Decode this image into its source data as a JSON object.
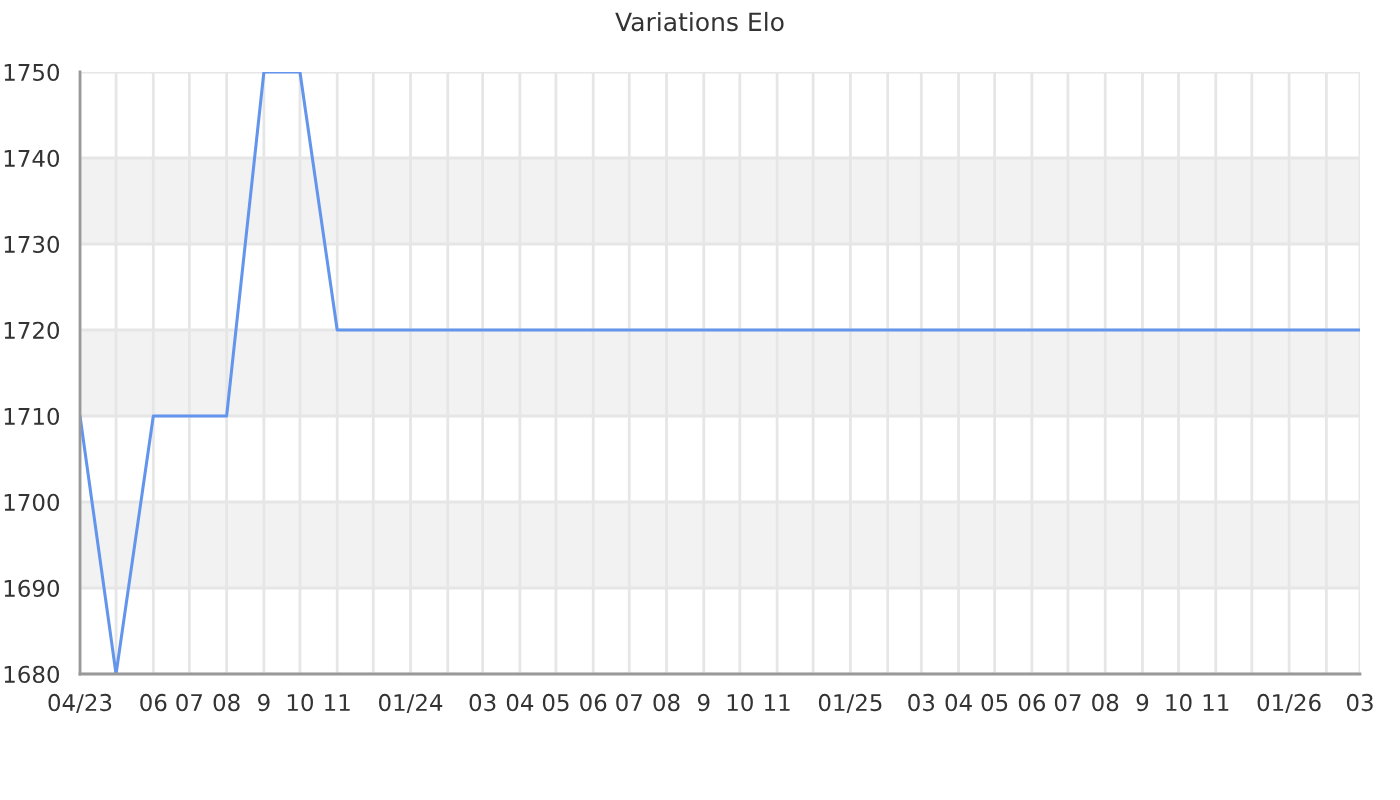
{
  "chart_data": {
    "type": "line",
    "title": "Variations Elo",
    "x": [
      "2023-04",
      "2023-05",
      "2023-06",
      "2023-07",
      "2023-08",
      "2023-09",
      "2023-10",
      "2023-11",
      "2023-12",
      "2024-01",
      "2024-02",
      "2024-03",
      "2024-04",
      "2024-05",
      "2024-06",
      "2024-07",
      "2024-08",
      "2024-09",
      "2024-10",
      "2024-11",
      "2024-12",
      "2025-01",
      "2025-02",
      "2025-03",
      "2025-04",
      "2025-05",
      "2025-06",
      "2025-07",
      "2025-08",
      "2025-09",
      "2025-10",
      "2025-11",
      "2025-12",
      "2026-01",
      "2026-02",
      "2026-03"
    ],
    "series": [
      {
        "color": "#6495ed",
        "values": [
          1710,
          1680,
          1710,
          1710,
          1710,
          1750,
          1750,
          1720,
          1720,
          1720,
          1720,
          1720,
          1720,
          1720,
          1720,
          1720,
          1720,
          1720,
          1720,
          1720,
          1720,
          1720,
          1720,
          1720,
          1720,
          1720,
          1720,
          1720,
          1720,
          1720,
          1720,
          1720,
          1720,
          1720,
          1720,
          1720
        ]
      }
    ],
    "xlim": [
      "2023-04",
      "2026-03"
    ],
    "xticks": [
      {
        "value": "2023-04",
        "label": "04/23"
      },
      {
        "value": "2023-05",
        "label": null
      },
      {
        "value": "2023-06",
        "label": "06"
      },
      {
        "value": "2023-07",
        "label": "07"
      },
      {
        "value": "2023-08",
        "label": "08"
      },
      {
        "value": "2023-09",
        "label": "9"
      },
      {
        "value": "2023-10",
        "label": "10"
      },
      {
        "value": "2023-11",
        "label": "11"
      },
      {
        "value": "2023-12",
        "label": null
      },
      {
        "value": "2024-01",
        "label": "01/24"
      },
      {
        "value": "2024-02",
        "label": null
      },
      {
        "value": "2024-03",
        "label": "03"
      },
      {
        "value": "2024-04",
        "label": "04"
      },
      {
        "value": "2024-05",
        "label": "05"
      },
      {
        "value": "2024-06",
        "label": "06"
      },
      {
        "value": "2024-07",
        "label": "07"
      },
      {
        "value": "2024-08",
        "label": "08"
      },
      {
        "value": "2024-09",
        "label": "9"
      },
      {
        "value": "2024-10",
        "label": "10"
      },
      {
        "value": "2024-11",
        "label": "11"
      },
      {
        "value": "2024-12",
        "label": null
      },
      {
        "value": "2025-01",
        "label": "01/25"
      },
      {
        "value": "2025-02",
        "label": null
      },
      {
        "value": "2025-03",
        "label": "03"
      },
      {
        "value": "2025-04",
        "label": "04"
      },
      {
        "value": "2025-05",
        "label": "05"
      },
      {
        "value": "2025-06",
        "label": "06"
      },
      {
        "value": "2025-07",
        "label": "07"
      },
      {
        "value": "2025-08",
        "label": "08"
      },
      {
        "value": "2025-09",
        "label": "9"
      },
      {
        "value": "2025-10",
        "label": "10"
      },
      {
        "value": "2025-11",
        "label": "11"
      },
      {
        "value": "2025-12",
        "label": null
      },
      {
        "value": "2026-01",
        "label": "01/26"
      },
      {
        "value": "2026-02",
        "label": null
      },
      {
        "value": "2026-03",
        "label": "03"
      }
    ],
    "ylim": [
      1680,
      1750
    ],
    "yticks": [
      1680,
      1690,
      1700,
      1710,
      1720,
      1730,
      1740,
      1750
    ],
    "bands": [
      {
        "axis": "y",
        "from": 1690,
        "to": 1700,
        "color": "#f2f2f2"
      },
      {
        "axis": "y",
        "from": 1710,
        "to": 1720,
        "color": "#f2f2f2"
      },
      {
        "axis": "y",
        "from": 1730,
        "to": 1740,
        "color": "#f2f2f2"
      }
    ],
    "grid": true,
    "line_style": "solid"
  }
}
